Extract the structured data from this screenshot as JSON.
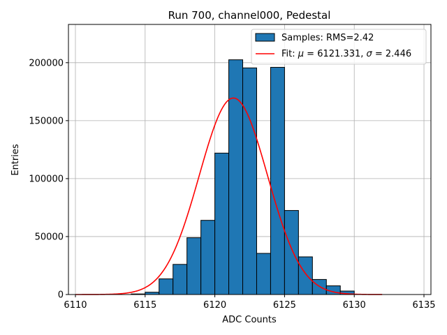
{
  "chart_data": {
    "type": "bar",
    "title": "Run 700, channel000, Pedestal",
    "xlabel": "ADC Counts",
    "ylabel": "Entries",
    "xlim": [
      6109.5,
      6135.5
    ],
    "ylim": [
      0,
      233000
    ],
    "grid": true,
    "legend_position": "top-right",
    "x_ticks": [
      6110,
      6115,
      6120,
      6125,
      6130,
      6135
    ],
    "y_ticks": [
      0,
      50000,
      100000,
      150000,
      200000
    ],
    "x_tick_labels": [
      "6110",
      "6115",
      "6120",
      "6125",
      "6130",
      "6135"
    ],
    "y_tick_labels": [
      "0",
      "50000",
      "100000",
      "150000",
      "200000"
    ],
    "colors": {
      "bar": "#1f77b4",
      "edge": "#000000",
      "fit": "#ff0000",
      "grid": "#b0b0b0"
    },
    "series": [
      {
        "name": "Samples: RMS=2.42",
        "kind": "histogram",
        "bin_width": 1,
        "bins": [
          {
            "x": 6114,
            "value": 500
          },
          {
            "x": 6115,
            "value": 2000
          },
          {
            "x": 6116,
            "value": 13500
          },
          {
            "x": 6117,
            "value": 26000
          },
          {
            "x": 6118,
            "value": 49000
          },
          {
            "x": 6119,
            "value": 64000
          },
          {
            "x": 6120,
            "value": 122000
          },
          {
            "x": 6121,
            "value": 202500
          },
          {
            "x": 6122,
            "value": 195500
          },
          {
            "x": 6123,
            "value": 35500
          },
          {
            "x": 6124,
            "value": 196000
          },
          {
            "x": 6125,
            "value": 72500
          },
          {
            "x": 6126,
            "value": 32500
          },
          {
            "x": 6127,
            "value": 13000
          },
          {
            "x": 6128,
            "value": 7500
          },
          {
            "x": 6129,
            "value": 3000
          }
        ]
      },
      {
        "name": "Fit: μ = 6121.331, σ = 2.446",
        "kind": "gaussian",
        "mu": 6121.331,
        "sigma": 2.446,
        "amplitude": 169500,
        "x_range": [
          6110,
          6132
        ]
      }
    ],
    "legend": {
      "samples_label": "Samples: RMS=2.42",
      "fit_label_prefix": "Fit: ",
      "fit_mu_symbol": "μ",
      "fit_mu_text": " = 6121.331, ",
      "fit_sigma_symbol": "σ",
      "fit_sigma_text": " = 2.446"
    }
  }
}
